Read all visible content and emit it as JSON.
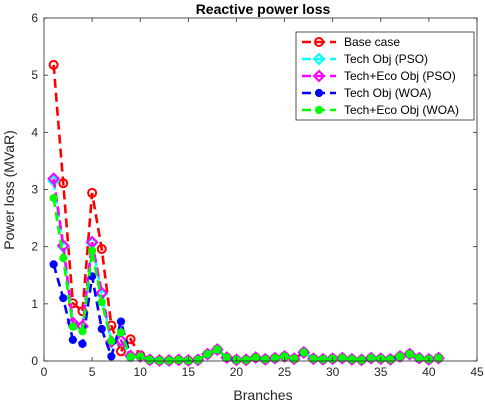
{
  "chart_data": {
    "type": "line",
    "title": "Reactive power loss",
    "xlabel": "Branches",
    "ylabel": "Power loss (MVaR)",
    "xlim": [
      0,
      45
    ],
    "ylim": [
      0,
      6
    ],
    "xticks": [
      0,
      5,
      10,
      15,
      20,
      25,
      30,
      35,
      40,
      45
    ],
    "yticks": [
      0,
      1,
      2,
      3,
      4,
      5,
      6
    ],
    "grid": false,
    "legend_position": "top-right",
    "x": [
      1,
      2,
      3,
      4,
      5,
      6,
      7,
      8,
      9,
      10,
      11,
      12,
      13,
      14,
      15,
      16,
      17,
      18,
      19,
      20,
      21,
      22,
      23,
      24,
      25,
      26,
      27,
      28,
      29,
      30,
      31,
      32,
      33,
      34,
      35,
      36,
      37,
      38,
      39,
      40,
      41
    ],
    "series": [
      {
        "name": "Base case",
        "color": "#ff0000",
        "marker": "circle-open",
        "values": [
          5.18,
          3.11,
          1.01,
          0.87,
          2.94,
          1.96,
          0.62,
          0.17,
          0.38,
          0.1,
          0.02,
          0.01,
          0.01,
          0.02,
          0.01,
          0.02,
          0.12,
          0.2,
          0.06,
          0.02,
          0.02,
          0.06,
          0.03,
          0.05,
          0.08,
          0.04,
          0.15,
          0.04,
          0.03,
          0.04,
          0.05,
          0.03,
          0.02,
          0.05,
          0.04,
          0.03,
          0.08,
          0.12,
          0.05,
          0.03,
          0.05
        ]
      },
      {
        "name": "Tech Obj (PSO)",
        "color": "#00ffff",
        "marker": "diamond-open",
        "values": [
          3.15,
          2.0,
          0.66,
          0.6,
          2.06,
          1.17,
          0.33,
          0.35,
          0.09,
          0.08,
          0.02,
          0.01,
          0.01,
          0.02,
          0.01,
          0.02,
          0.12,
          0.2,
          0.06,
          0.02,
          0.02,
          0.06,
          0.03,
          0.05,
          0.08,
          0.04,
          0.15,
          0.04,
          0.03,
          0.04,
          0.05,
          0.03,
          0.02,
          0.05,
          0.04,
          0.03,
          0.08,
          0.12,
          0.05,
          0.03,
          0.05
        ]
      },
      {
        "name": "Tech+Eco Obj (PSO)",
        "color": "#ff00ff",
        "marker": "diamond-open",
        "values": [
          3.19,
          2.02,
          0.67,
          0.61,
          2.08,
          1.19,
          0.34,
          0.36,
          0.09,
          0.08,
          0.02,
          0.01,
          0.01,
          0.02,
          0.01,
          0.02,
          0.12,
          0.2,
          0.06,
          0.02,
          0.02,
          0.06,
          0.03,
          0.05,
          0.08,
          0.04,
          0.15,
          0.04,
          0.03,
          0.04,
          0.05,
          0.03,
          0.02,
          0.05,
          0.04,
          0.03,
          0.08,
          0.12,
          0.05,
          0.03,
          0.05
        ]
      },
      {
        "name": "Tech Obj (WOA)",
        "color": "#0000ff",
        "marker": "circle-filled",
        "values": [
          1.69,
          1.1,
          0.37,
          0.3,
          1.48,
          0.56,
          0.08,
          0.69,
          0.06,
          0.08,
          0.02,
          0.01,
          0.01,
          0.02,
          0.01,
          0.02,
          0.12,
          0.2,
          0.06,
          0.02,
          0.02,
          0.06,
          0.03,
          0.05,
          0.08,
          0.04,
          0.15,
          0.04,
          0.03,
          0.04,
          0.05,
          0.03,
          0.02,
          0.05,
          0.04,
          0.03,
          0.08,
          0.12,
          0.05,
          0.03,
          0.05
        ]
      },
      {
        "name": "Tech+Eco Obj (WOA)",
        "color": "#00ff00",
        "marker": "circle-filled",
        "values": [
          2.85,
          1.8,
          0.6,
          0.52,
          1.93,
          1.03,
          0.35,
          0.5,
          0.07,
          0.08,
          0.02,
          0.01,
          0.01,
          0.02,
          0.01,
          0.02,
          0.12,
          0.2,
          0.06,
          0.02,
          0.02,
          0.06,
          0.03,
          0.05,
          0.08,
          0.04,
          0.15,
          0.04,
          0.03,
          0.04,
          0.05,
          0.03,
          0.02,
          0.05,
          0.04,
          0.03,
          0.08,
          0.12,
          0.05,
          0.03,
          0.05
        ]
      }
    ]
  }
}
